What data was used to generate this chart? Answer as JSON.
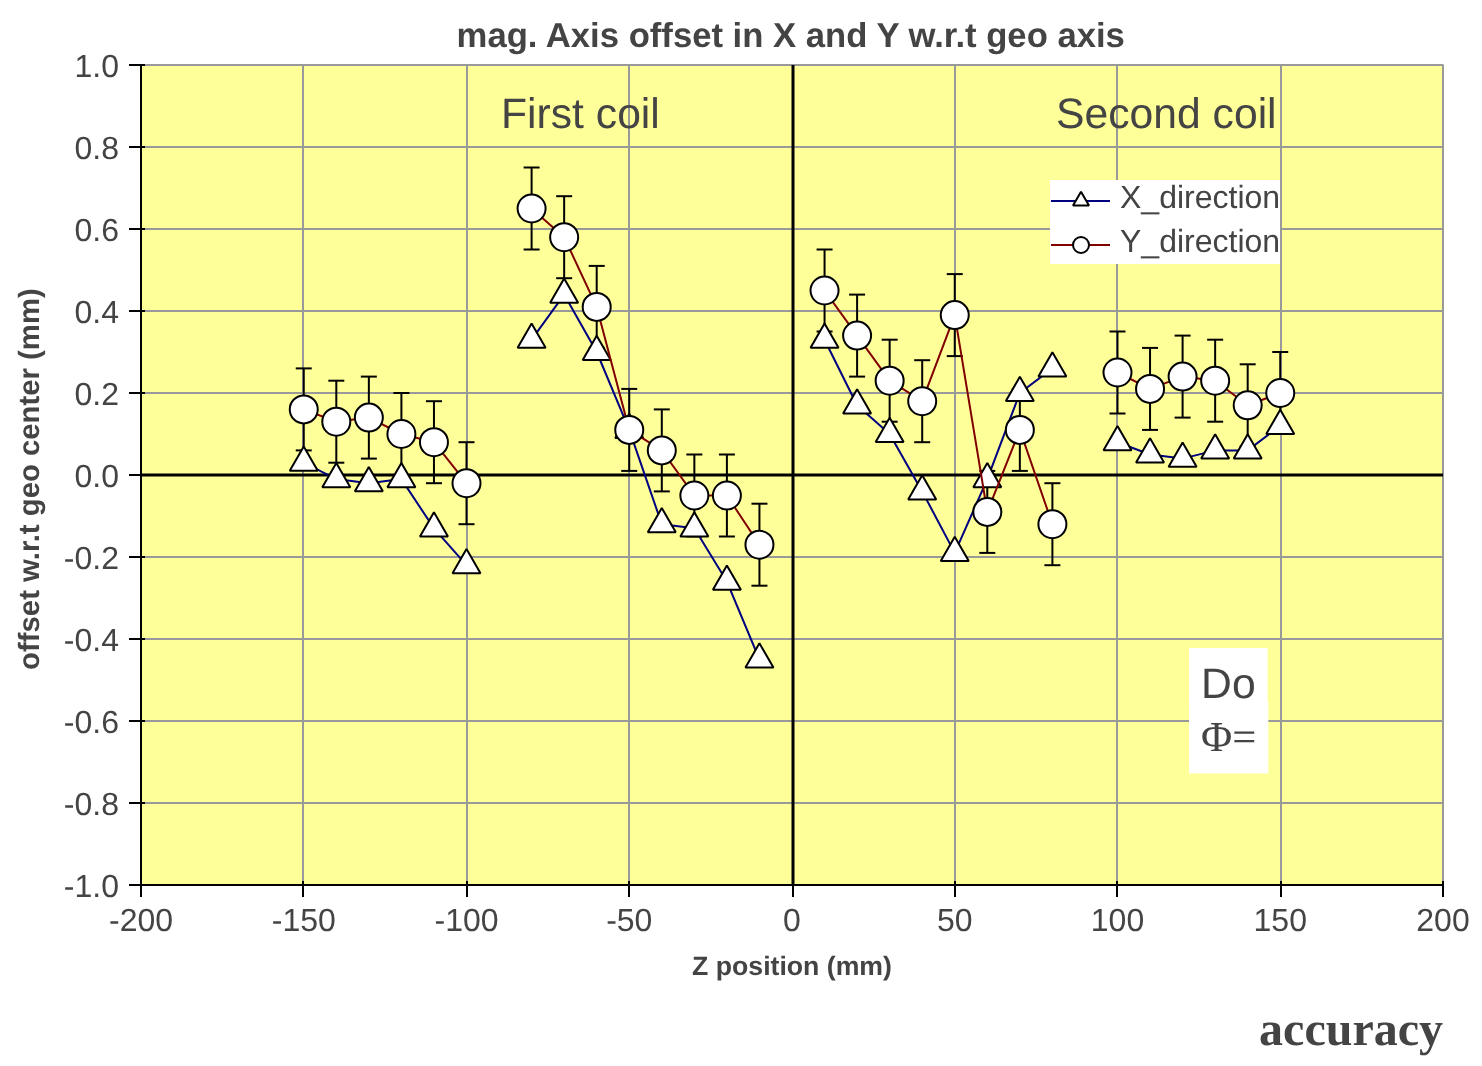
{
  "chart_data": {
    "type": "line",
    "title": "mag. Axis offset in X and Y w.r.t geo axis",
    "xlabel": "Z position (mm)",
    "ylabel": "offset  w.r.t geo center (mm)",
    "x": [
      -150,
      -140,
      -130,
      -120,
      -110,
      -100,
      -90,
      -80,
      -70,
      -60,
      -50,
      -40,
      -30,
      -20,
      -10,
      0,
      10,
      20,
      30,
      40,
      50,
      60,
      70,
      80,
      90,
      100,
      110,
      120,
      130,
      140,
      150
    ],
    "series": [
      {
        "name": "X_direction",
        "color": "#000080",
        "marker": "triangle",
        "values": [
          0.03,
          -0.01,
          -0.02,
          -0.01,
          -0.13,
          -0.22,
          null,
          0.33,
          0.44,
          0.3,
          0.11,
          -0.12,
          -0.13,
          -0.26,
          -0.45,
          null,
          0.33,
          0.17,
          0.1,
          -0.04,
          -0.19,
          -0.01,
          0.2,
          0.26,
          null,
          0.08,
          0.05,
          0.04,
          0.06,
          0.06,
          0.12
        ]
      },
      {
        "name": "Y_direction",
        "color": "#800000",
        "marker": "circle",
        "values": [
          0.16,
          0.13,
          0.14,
          0.1,
          0.08,
          -0.02,
          null,
          0.65,
          0.58,
          0.41,
          0.11,
          0.06,
          -0.05,
          -0.05,
          -0.17,
          null,
          0.45,
          0.34,
          0.23,
          0.18,
          0.39,
          -0.09,
          0.11,
          -0.12,
          null,
          0.25,
          0.21,
          0.24,
          0.23,
          0.17,
          0.2
        ],
        "errors": [
          0.1,
          0.1,
          0.1,
          0.1,
          0.1,
          0.1,
          null,
          0.1,
          0.1,
          0.1,
          0.1,
          0.1,
          0.1,
          0.1,
          0.1,
          null,
          0.1,
          0.1,
          0.1,
          0.1,
          0.1,
          0.1,
          0.1,
          0.1,
          null,
          0.1,
          0.1,
          0.1,
          0.1,
          0.1,
          0.1
        ]
      }
    ],
    "xlim": [
      -200,
      200
    ],
    "xticks": [
      -200,
      -150,
      -100,
      -50,
      0,
      50,
      100,
      150,
      200
    ],
    "ylim": [
      -1.0,
      1.0
    ],
    "yticks": [
      {
        "value": -1.0,
        "label": "-1.0"
      },
      -0.8,
      -0.6,
      -0.4,
      -0.2,
      {
        "value": 0,
        "label": "0.0"
      },
      0.2,
      0.4,
      0.6,
      0.8,
      {
        "value": 1.0,
        "label": "1.0"
      }
    ],
    "grid": true,
    "legend": "top right",
    "line_style": "solid",
    "annotations": [
      "First coil",
      "Second coil",
      "Do",
      "Φ=",
      "accuracy"
    ]
  }
}
